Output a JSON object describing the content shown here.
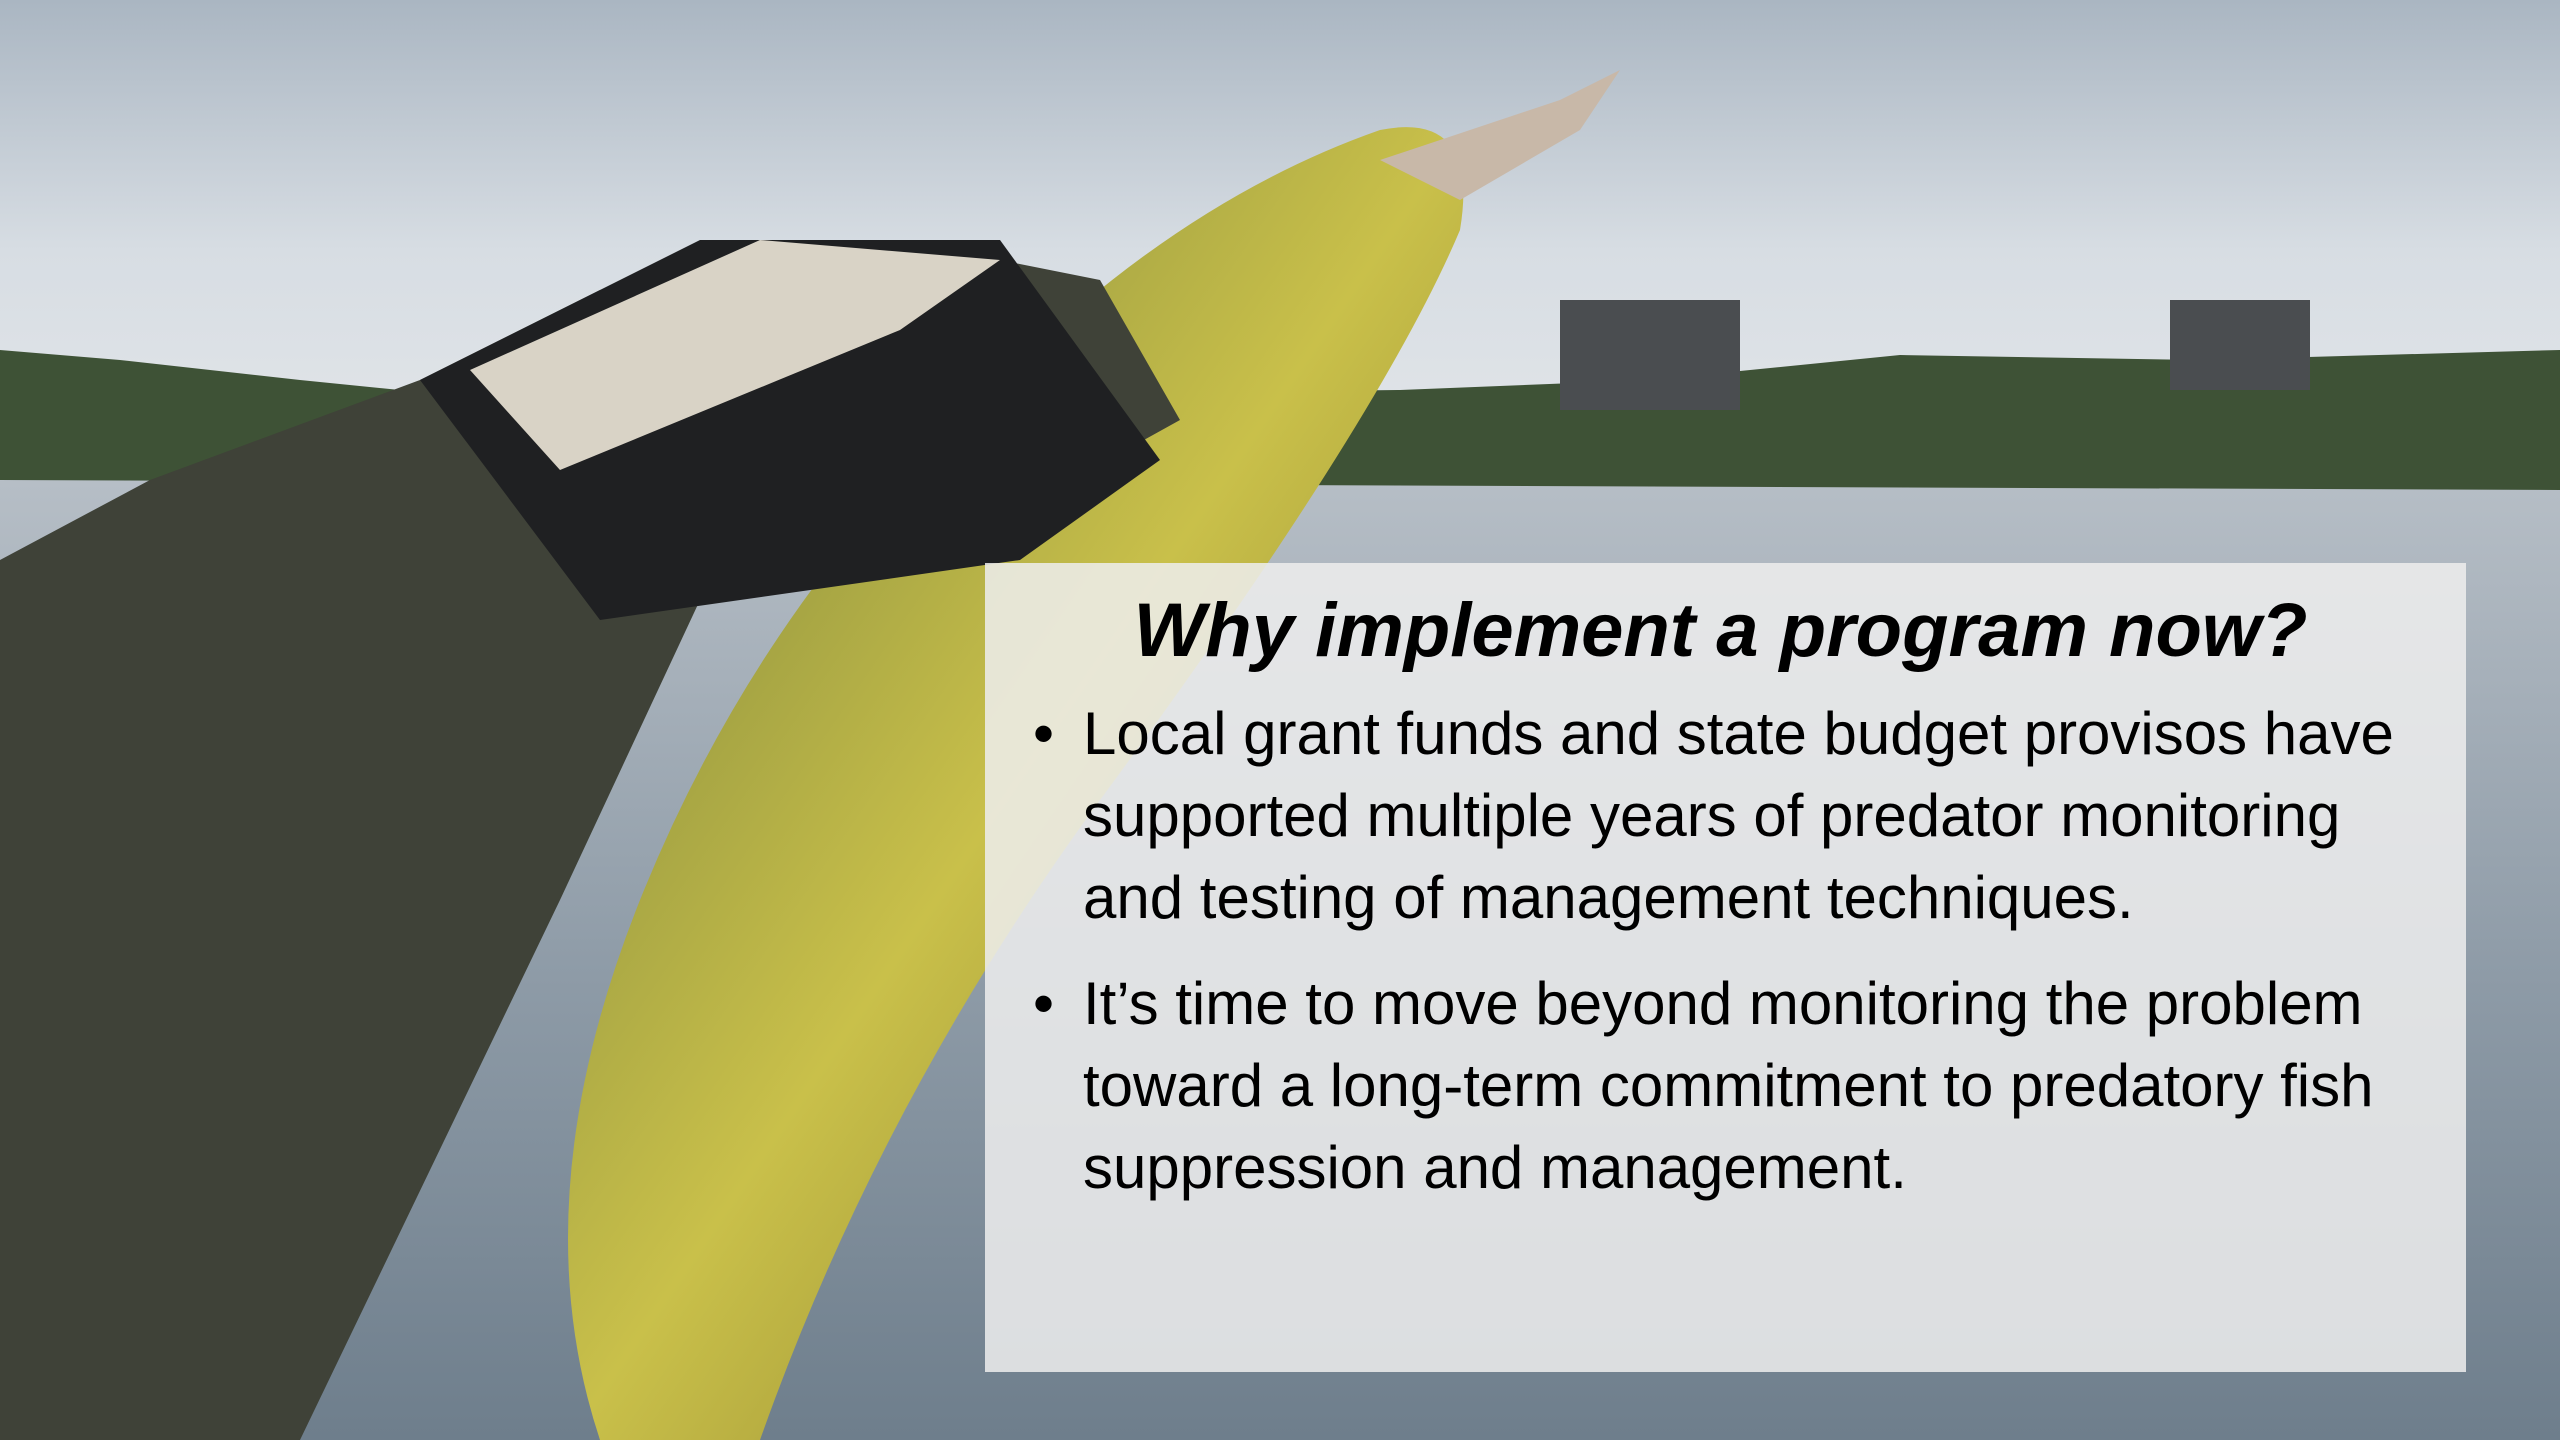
{
  "slide": {
    "title": "Why implement a program now?",
    "bullets": [
      "Local grant funds and state budget provisos have supported multiple years of predator monitoring and testing of management techniques.",
      "It’s time to move beyond monitoring the problem toward a long-term commitment to predatory fish suppression and management."
    ]
  }
}
